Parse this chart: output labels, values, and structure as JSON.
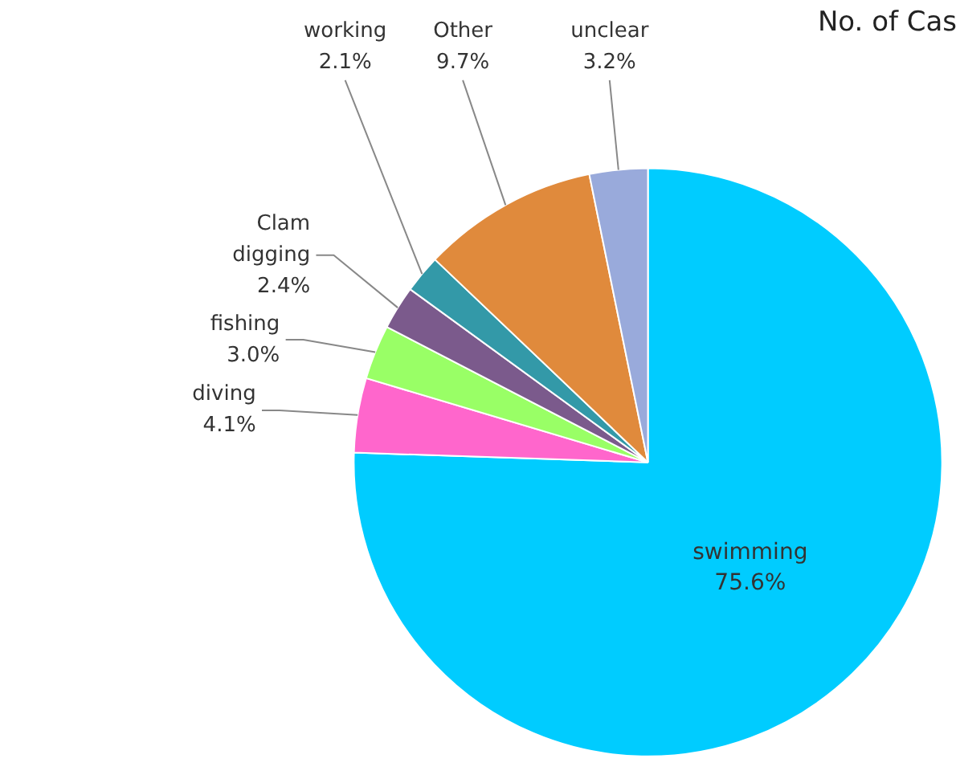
{
  "chart_data": {
    "type": "pie",
    "title": "No. of Cas",
    "categories": [
      "swimming",
      "diving",
      "fishing",
      "Clam digging",
      "working",
      "Other",
      "unclear"
    ],
    "values": [
      75.6,
      4.1,
      3.0,
      2.4,
      2.1,
      9.7,
      3.2
    ],
    "value_labels": [
      "75.6%",
      "4.1%",
      "3.0%",
      "2.4%",
      "2.1%",
      "9.7%",
      "3.2%"
    ],
    "colors": [
      "#00ccff",
      "#ff66cc",
      "#99ff66",
      "#7b5a8c",
      "#3399a8",
      "#e08a3c",
      "#99aadb"
    ]
  }
}
